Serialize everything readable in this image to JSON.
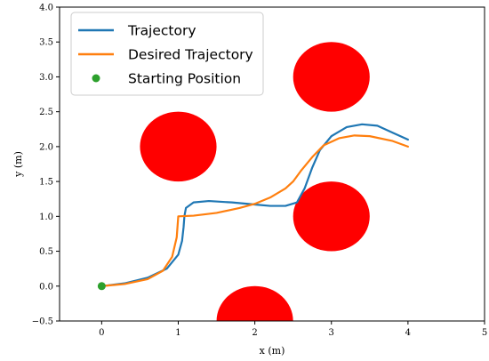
{
  "chart_data": {
    "type": "line",
    "xlabel": "x (m)",
    "ylabel": "y (m)",
    "xlim": [
      -0.55,
      5.0
    ],
    "ylim": [
      -0.5,
      4.0
    ],
    "xticks": [
      "0",
      "1",
      "2",
      "3",
      "4",
      "5"
    ],
    "yticks": [
      "−0.5",
      "0.0",
      "0.5",
      "1.0",
      "1.5",
      "2.0",
      "2.5",
      "3.0",
      "3.5",
      "4.0"
    ],
    "legend_position": "top-left",
    "series": [
      {
        "name": "Trajectory",
        "kind": "line",
        "color": "#1f77b4",
        "points": [
          [
            0,
            0
          ],
          [
            0.3,
            0.04
          ],
          [
            0.6,
            0.12
          ],
          [
            0.85,
            0.25
          ],
          [
            1.0,
            0.45
          ],
          [
            1.05,
            0.65
          ],
          [
            1.07,
            0.85
          ],
          [
            1.08,
            1.0
          ],
          [
            1.1,
            1.12
          ],
          [
            1.2,
            1.2
          ],
          [
            1.4,
            1.22
          ],
          [
            1.7,
            1.2
          ],
          [
            2.0,
            1.17
          ],
          [
            2.2,
            1.15
          ],
          [
            2.4,
            1.15
          ],
          [
            2.55,
            1.2
          ],
          [
            2.65,
            1.4
          ],
          [
            2.75,
            1.7
          ],
          [
            2.85,
            1.95
          ],
          [
            3.0,
            2.15
          ],
          [
            3.2,
            2.28
          ],
          [
            3.4,
            2.32
          ],
          [
            3.6,
            2.3
          ],
          [
            3.8,
            2.2
          ],
          [
            4.0,
            2.1
          ]
        ]
      },
      {
        "name": "Desired Trajectory",
        "kind": "line",
        "color": "#ff7f0e",
        "points": [
          [
            0,
            0
          ],
          [
            0.3,
            0.03
          ],
          [
            0.6,
            0.1
          ],
          [
            0.8,
            0.22
          ],
          [
            0.92,
            0.42
          ],
          [
            0.98,
            0.7
          ],
          [
            1.0,
            1.0
          ],
          [
            1.2,
            1.01
          ],
          [
            1.5,
            1.05
          ],
          [
            1.8,
            1.12
          ],
          [
            2.0,
            1.18
          ],
          [
            2.2,
            1.27
          ],
          [
            2.4,
            1.4
          ],
          [
            2.5,
            1.5
          ],
          [
            2.6,
            1.65
          ],
          [
            2.75,
            1.85
          ],
          [
            2.9,
            2.02
          ],
          [
            3.1,
            2.12
          ],
          [
            3.3,
            2.16
          ],
          [
            3.5,
            2.15
          ],
          [
            3.8,
            2.08
          ],
          [
            4.0,
            2.0
          ]
        ]
      },
      {
        "name": "Starting Position",
        "kind": "point",
        "color": "#2ca02c",
        "points": [
          [
            0,
            0
          ]
        ]
      }
    ],
    "obstacles": [
      {
        "x": 1.0,
        "y": 2.0,
        "r": 0.5,
        "color": "#ff0000"
      },
      {
        "x": 3.0,
        "y": 3.0,
        "r": 0.5,
        "color": "#ff0000"
      },
      {
        "x": 3.0,
        "y": 1.0,
        "r": 0.5,
        "color": "#ff0000"
      },
      {
        "x": 2.0,
        "y": -0.5,
        "r": 0.5,
        "color": "#ff0000"
      }
    ]
  }
}
